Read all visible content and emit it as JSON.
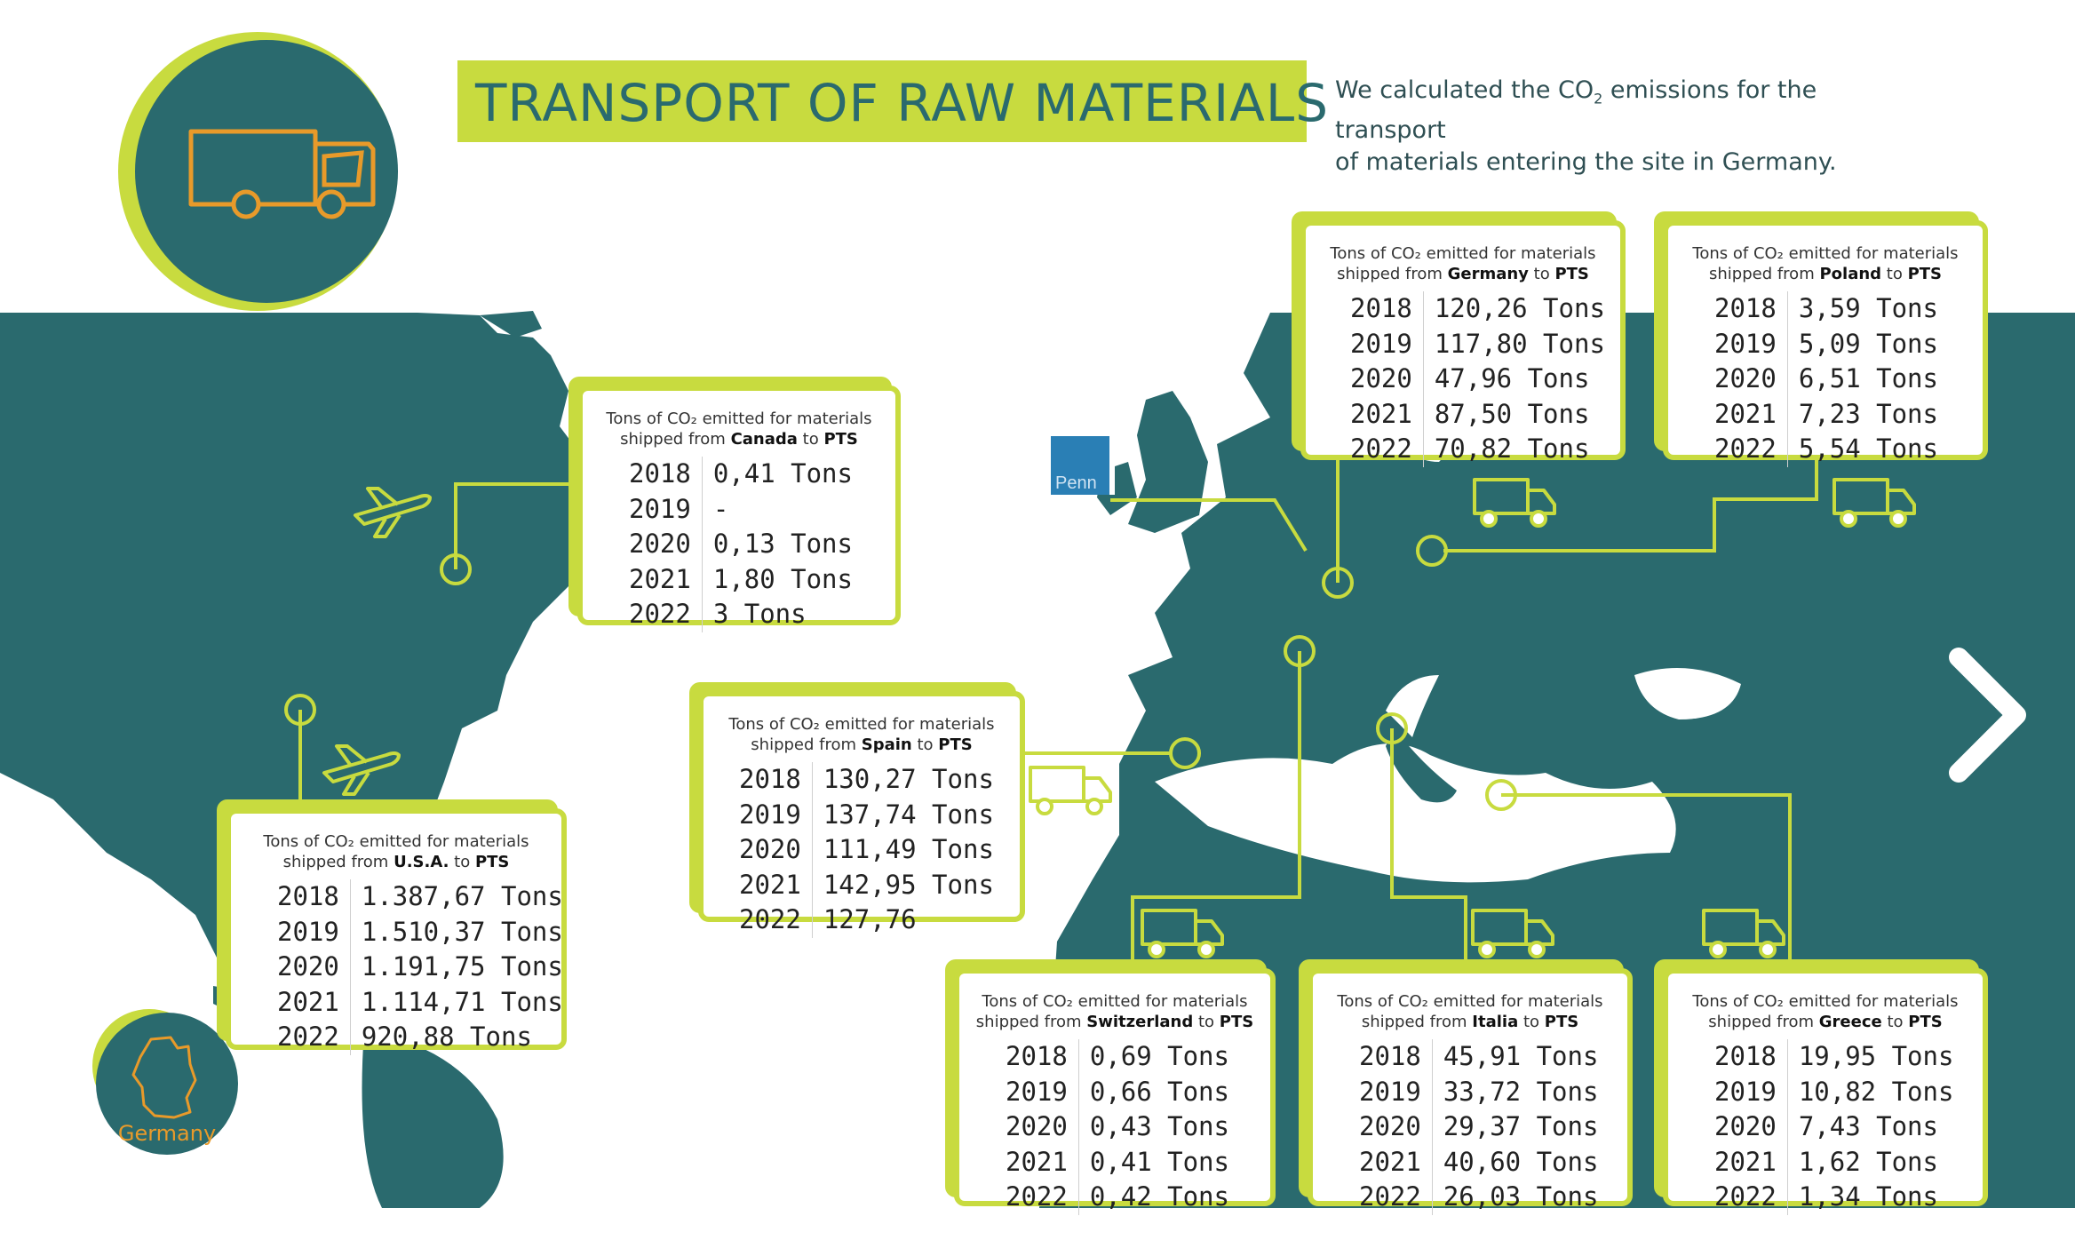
{
  "title": "TRANSPORT OF RAW MATERIALS",
  "intro": {
    "before_sub": "We calculated the CO",
    "sub": "2",
    "after_sub": " emissions for the transport",
    "line2": "of materials entering the site in Germany."
  },
  "logo_text": "Penn",
  "germany_label": "Germany",
  "colors": {
    "teal": "#2a6a6e",
    "lime": "#c8db3f",
    "orange": "#e89a2a"
  },
  "icons": [
    "truck-icon",
    "airplane-icon",
    "germany-outline-icon",
    "chevron-right-icon"
  ],
  "cards": {
    "canada": {
      "caption1": "Tons of CO₂ emitted for materials",
      "caption_pre": "shipped from ",
      "country": "Canada",
      "caption_mid": " to ",
      "dest": "PTS",
      "rows": [
        {
          "year": "2018",
          "value": "0,41 Tons"
        },
        {
          "year": "2019",
          "value": "-"
        },
        {
          "year": "2020",
          "value": "0,13 Tons"
        },
        {
          "year": "2021",
          "value": "1,80 Tons"
        },
        {
          "year": "2022",
          "value": "3 Tons"
        }
      ]
    },
    "usa": {
      "caption1": "Tons of CO₂ emitted for materials",
      "caption_pre": "shipped from ",
      "country": "U.S.A.",
      "caption_mid": " to ",
      "dest": "PTS",
      "rows": [
        {
          "year": "2018",
          "value": "1.387,67 Tons"
        },
        {
          "year": "2019",
          "value": "1.510,37 Tons"
        },
        {
          "year": "2020",
          "value": "1.191,75 Tons"
        },
        {
          "year": "2021",
          "value": "1.114,71 Tons"
        },
        {
          "year": "2022",
          "value": "920,88 Tons"
        }
      ]
    },
    "spain": {
      "caption1": "Tons of CO₂ emitted for materials",
      "caption_pre": "shipped from ",
      "country": "Spain",
      "caption_mid": " to ",
      "dest": "PTS",
      "rows": [
        {
          "year": "2018",
          "value": "130,27 Tons"
        },
        {
          "year": "2019",
          "value": "137,74 Tons"
        },
        {
          "year": "2020",
          "value": "111,49 Tons"
        },
        {
          "year": "2021",
          "value": "142,95 Tons"
        },
        {
          "year": "2022",
          "value": "127,76"
        }
      ]
    },
    "germany": {
      "caption1": "Tons of CO₂ emitted for materials",
      "caption_pre": "shipped from ",
      "country": "Germany",
      "caption_mid": " to ",
      "dest": "PTS",
      "rows": [
        {
          "year": "2018",
          "value": "120,26 Tons"
        },
        {
          "year": "2019",
          "value": "117,80 Tons"
        },
        {
          "year": "2020",
          "value": "47,96 Tons"
        },
        {
          "year": "2021",
          "value": "87,50 Tons"
        },
        {
          "year": "2022",
          "value": "70,82 Tons"
        }
      ]
    },
    "poland": {
      "caption1": "Tons of CO₂ emitted for materials",
      "caption_pre": "shipped from ",
      "country": "Poland",
      "caption_mid": " to ",
      "dest": "PTS",
      "rows": [
        {
          "year": "2018",
          "value": "3,59 Tons"
        },
        {
          "year": "2019",
          "value": "5,09 Tons"
        },
        {
          "year": "2020",
          "value": "6,51 Tons"
        },
        {
          "year": "2021",
          "value": "7,23 Tons"
        },
        {
          "year": "2022",
          "value": "5,54 Tons"
        }
      ]
    },
    "switzerland": {
      "caption1": "Tons of CO₂ emitted for materials",
      "caption_pre": "shipped from ",
      "country": "Switzerland",
      "caption_mid": " to ",
      "dest": "PTS",
      "rows": [
        {
          "year": "2018",
          "value": "0,69 Tons"
        },
        {
          "year": "2019",
          "value": "0,66 Tons"
        },
        {
          "year": "2020",
          "value": "0,43 Tons"
        },
        {
          "year": "2021",
          "value": "0,41 Tons"
        },
        {
          "year": "2022",
          "value": "0,42 Tons"
        }
      ]
    },
    "italia": {
      "caption1": "Tons of CO₂ emitted for materials",
      "caption_pre": "shipped from ",
      "country": "Italia",
      "caption_mid": " to ",
      "dest": "PTS",
      "rows": [
        {
          "year": "2018",
          "value": "45,91 Tons"
        },
        {
          "year": "2019",
          "value": "33,72 Tons"
        },
        {
          "year": "2020",
          "value": "29,37 Tons"
        },
        {
          "year": "2021",
          "value": "40,60 Tons"
        },
        {
          "year": "2022",
          "value": "26,03 Tons"
        }
      ]
    },
    "greece": {
      "caption1": "Tons of CO₂ emitted for materials",
      "caption_pre": "shipped from ",
      "country": "Greece",
      "caption_mid": " to ",
      "dest": "PTS",
      "rows": [
        {
          "year": "2018",
          "value": "19,95 Tons"
        },
        {
          "year": "2019",
          "value": "10,82 Tons"
        },
        {
          "year": "2020",
          "value": "7,43 Tons"
        },
        {
          "year": "2021",
          "value": "1,62 Tons"
        },
        {
          "year": "2022",
          "value": "1,34 Tons"
        }
      ]
    }
  }
}
